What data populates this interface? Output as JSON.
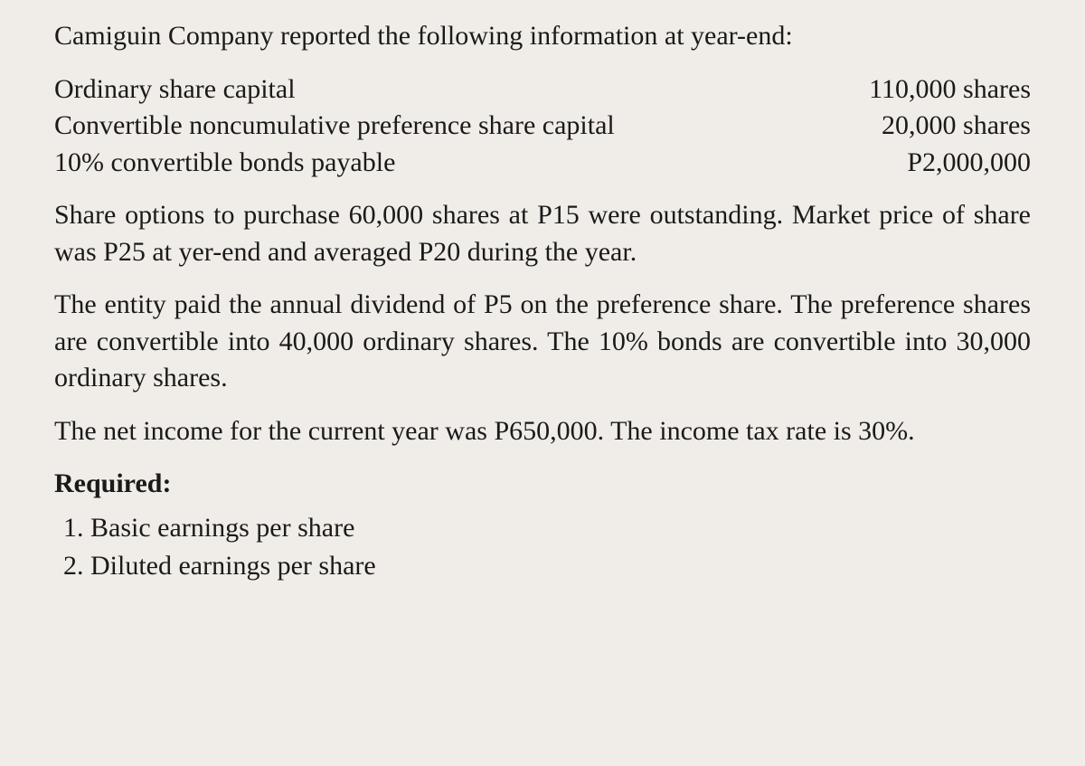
{
  "intro": "Camiguin Company reported the following information at year-end:",
  "capital": {
    "rows": [
      {
        "label": "Ordinary share capital",
        "value": "110,000 shares"
      },
      {
        "label": "Convertible noncumulative preference share capital",
        "value": "20,000 shares"
      },
      {
        "label": "10% convertible bonds payable",
        "value": "P2,000,000"
      }
    ]
  },
  "para1": "Share options to purchase 60,000 shares at P15 were outstanding. Market price of share was P25 at yer-end and averaged P20 during the year.",
  "para2": "The entity paid the annual dividend of P5 on the preference share. The preference shares are convertible into 40,000 ordinary shares. The 10% bonds are convertible into 30,000 ordinary shares.",
  "para3": "The net income for the current year was P650,000. The income tax rate is 30%.",
  "required_label": "Required:",
  "requirements": [
    "Basic earnings per share",
    "Diluted earnings per share"
  ]
}
